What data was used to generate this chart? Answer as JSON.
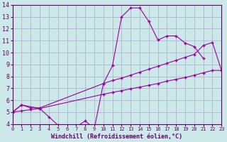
{
  "background_color": "#cce8e8",
  "grid_color": "#aaaacc",
  "line_color": "#990099",
  "marker": "+",
  "xlabel": "Windchill (Refroidissement éolien,°C)",
  "ylim": [
    4,
    14
  ],
  "xlim": [
    0,
    23
  ],
  "yticks": [
    4,
    5,
    6,
    7,
    8,
    9,
    10,
    11,
    12,
    13,
    14
  ],
  "xticks": [
    0,
    1,
    2,
    3,
    4,
    5,
    6,
    7,
    8,
    9,
    10,
    11,
    12,
    13,
    14,
    15,
    16,
    17,
    18,
    19,
    20,
    21,
    22,
    23
  ],
  "line1_x": [
    0,
    1,
    3,
    4,
    5,
    6,
    7,
    8,
    9,
    10,
    11,
    12,
    13,
    14,
    15,
    16,
    17,
    18,
    19,
    20,
    21
  ],
  "line1_y": [
    5.0,
    5.6,
    5.3,
    4.6,
    3.9,
    3.75,
    3.75,
    4.25,
    3.6,
    7.4,
    8.9,
    13.0,
    13.75,
    13.75,
    12.6,
    11.05,
    11.4,
    11.4,
    10.8,
    10.5,
    9.5
  ],
  "line2_x": [
    0,
    1,
    2,
    3,
    10,
    11,
    12,
    13,
    14,
    15,
    16,
    17,
    18,
    19,
    20,
    21,
    22,
    23
  ],
  "line2_y": [
    5.0,
    5.6,
    5.35,
    5.35,
    7.4,
    7.65,
    7.85,
    8.1,
    8.35,
    8.6,
    8.85,
    9.1,
    9.35,
    9.6,
    9.85,
    10.6,
    10.85,
    8.5
  ],
  "line3_x": [
    0,
    1,
    2,
    3,
    10,
    11,
    12,
    13,
    14,
    15,
    16,
    17,
    18,
    19,
    20,
    21,
    22,
    23
  ],
  "line3_y": [
    5.0,
    5.1,
    5.2,
    5.3,
    6.5,
    6.65,
    6.8,
    6.95,
    7.1,
    7.25,
    7.4,
    7.6,
    7.75,
    7.9,
    8.1,
    8.3,
    8.5,
    8.5
  ]
}
